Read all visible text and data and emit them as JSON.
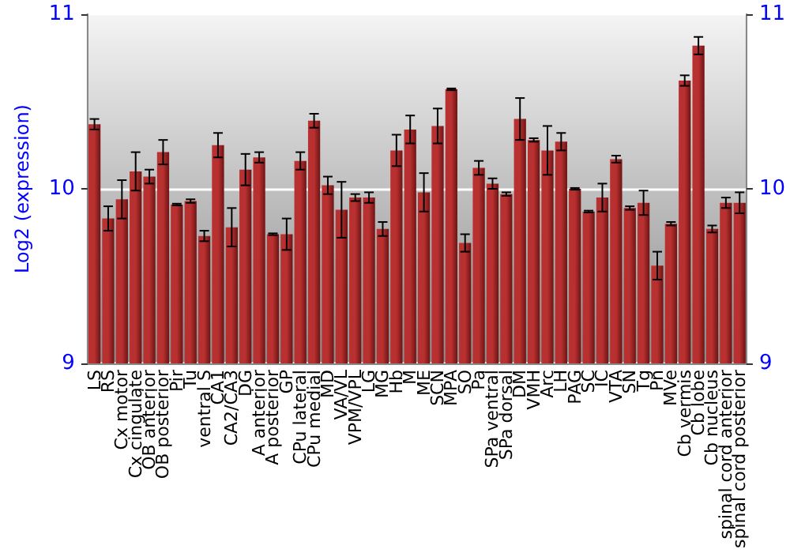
{
  "chart_data": {
    "type": "bar",
    "ylabel": "Log2 (expression)",
    "color": "#b83030",
    "categories": [
      "LS",
      "RS",
      "Cx motor",
      "Cx cingulate",
      "OB anterior",
      "OB posterior",
      "Pir",
      "Tu",
      "ventral S",
      "CA1",
      "CA2/CA3",
      "DG",
      "A anterior",
      "A posterior",
      "GP",
      "CPu lateral",
      "CPu medial",
      "MD",
      "VA/VL",
      "VPM/VPL",
      "LG",
      "MG",
      "Hb",
      "M",
      "ME",
      "SCN",
      "MPA",
      "SO",
      "Pa",
      "SPa ventral",
      "SPa dorsal",
      "DM",
      "VMH",
      "Arc",
      "LH",
      "PAG",
      "SC",
      "IC",
      "VTA",
      "SN",
      "Tg",
      "Pn",
      "MVe",
      "Cb vermis",
      "Cb lobe",
      "Cb nucleus",
      "spinal cord anterior",
      "spinal cord posterior"
    ],
    "values": [
      10.37,
      9.83,
      9.94,
      10.1,
      10.07,
      10.21,
      9.91,
      9.93,
      9.73,
      10.25,
      9.78,
      10.11,
      10.18,
      9.74,
      9.74,
      10.16,
      10.39,
      10.02,
      9.88,
      9.95,
      9.95,
      9.77,
      10.22,
      10.34,
      9.98,
      10.36,
      10.57,
      9.69,
      10.12,
      10.03,
      9.97,
      10.4,
      10.28,
      10.22,
      10.27,
      10.0,
      9.87,
      9.95,
      10.17,
      9.89,
      9.92,
      9.56,
      9.8,
      10.62,
      10.82,
      9.77,
      9.92,
      9.92
    ],
    "errors": [
      0.03,
      0.07,
      0.11,
      0.11,
      0.04,
      0.07,
      0.005,
      0.01,
      0.03,
      0.07,
      0.11,
      0.09,
      0.03,
      0.005,
      0.09,
      0.05,
      0.04,
      0.05,
      0.16,
      0.02,
      0.03,
      0.04,
      0.09,
      0.08,
      0.11,
      0.1,
      0.005,
      0.05,
      0.04,
      0.03,
      0.01,
      0.12,
      0.01,
      0.14,
      0.05,
      0.005,
      0.005,
      0.08,
      0.02,
      0.01,
      0.07,
      0.08,
      0.01,
      0.03,
      0.05,
      0.02,
      0.03,
      0.06
    ],
    "ylim": [
      9,
      11
    ],
    "yticks": [
      9,
      10,
      11
    ],
    "y2lim": [
      9,
      11
    ],
    "y2ticks": [
      9,
      10,
      11
    ],
    "grid": "y"
  }
}
